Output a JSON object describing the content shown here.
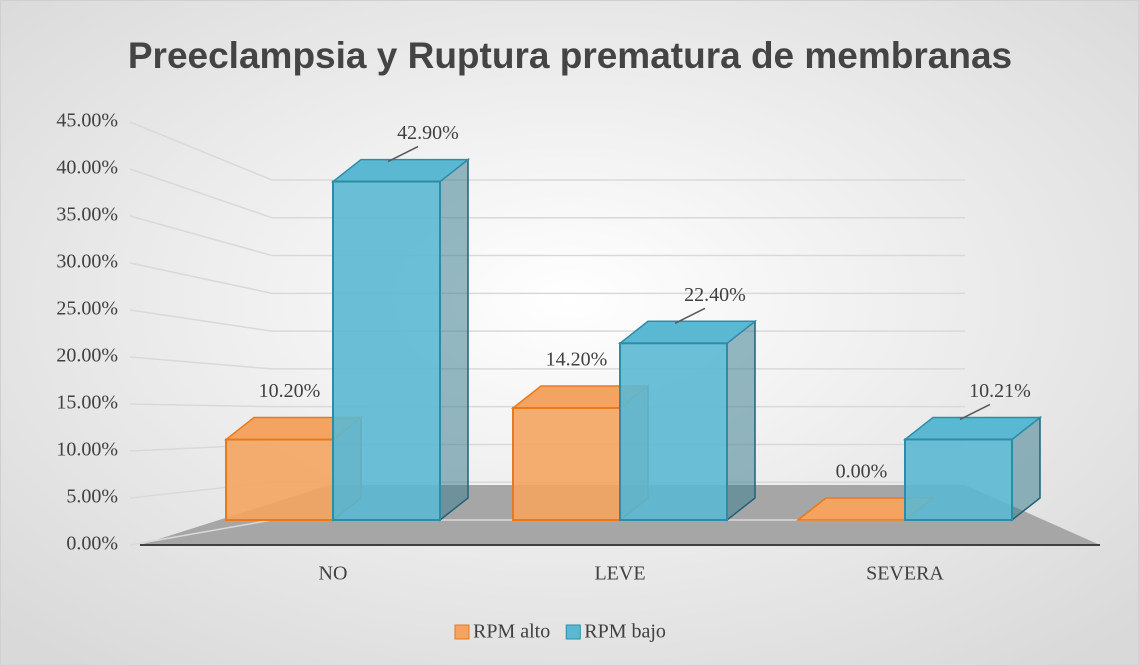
{
  "chart_data": {
    "type": "bar3d",
    "title": "Preeclampsia y Ruptura prematura de membranas",
    "categories": [
      "NO",
      "LEVE",
      "SEVERA"
    ],
    "series": [
      {
        "name": "RPM alto",
        "color": "#f4a460",
        "values": [
          10.2,
          14.2,
          0
        ],
        "value_labels": [
          "10.20%",
          "14.20%",
          "0.00%"
        ]
      },
      {
        "name": "RPM bajo",
        "color": "#5bb8d2",
        "values": [
          42.9,
          22.4,
          10.21
        ],
        "value_labels": [
          "42.90%",
          "22.40%",
          "10.21%"
        ]
      }
    ],
    "ylim": [
      0,
      45
    ],
    "yticks": [
      {
        "value": 0,
        "label": "0.00%"
      },
      {
        "value": 5,
        "label": "5.00%"
      },
      {
        "value": 10,
        "label": "10.00%"
      },
      {
        "value": 15,
        "label": "15.00%"
      },
      {
        "value": 20,
        "label": "20.00%"
      },
      {
        "value": 25,
        "label": "25.00%"
      },
      {
        "value": 30,
        "label": "30.00%"
      },
      {
        "value": 35,
        "label": "35.00%"
      },
      {
        "value": 40,
        "label": "40.00%"
      },
      {
        "value": 45,
        "label": "45.00%"
      }
    ],
    "grid": true,
    "legend": "bottom"
  }
}
